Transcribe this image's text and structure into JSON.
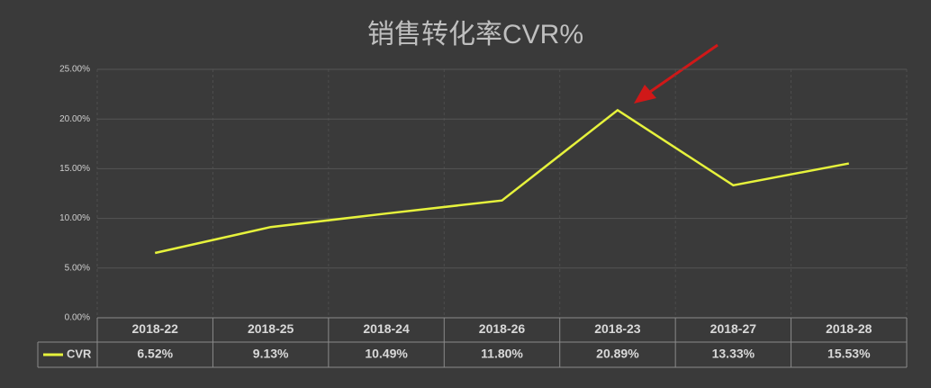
{
  "chart_data": {
    "type": "line",
    "title": "销售转化率CVR%",
    "categories": [
      "2018-22",
      "2018-25",
      "2018-24",
      "2018-26",
      "2018-23",
      "2018-27",
      "2018-28"
    ],
    "series": [
      {
        "name": "CVR",
        "color": "#e6f23c",
        "values": [
          6.52,
          9.13,
          10.49,
          11.8,
          20.89,
          13.33,
          15.53
        ],
        "value_labels": [
          "6.52%",
          "9.13%",
          "10.49%",
          "11.80%",
          "20.89%",
          "13.33%",
          "15.53%"
        ]
      }
    ],
    "ylim": [
      0,
      25
    ],
    "yticks": [
      {
        "value": 0,
        "label": "0.00%"
      },
      {
        "value": 5,
        "label": "5.00%"
      },
      {
        "value": 10,
        "label": "10.00%"
      },
      {
        "value": 15,
        "label": "15.00%"
      },
      {
        "value": 20,
        "label": "20.00%"
      },
      {
        "value": 25,
        "label": "25.00%"
      }
    ],
    "grid": true,
    "data_table": true
  }
}
